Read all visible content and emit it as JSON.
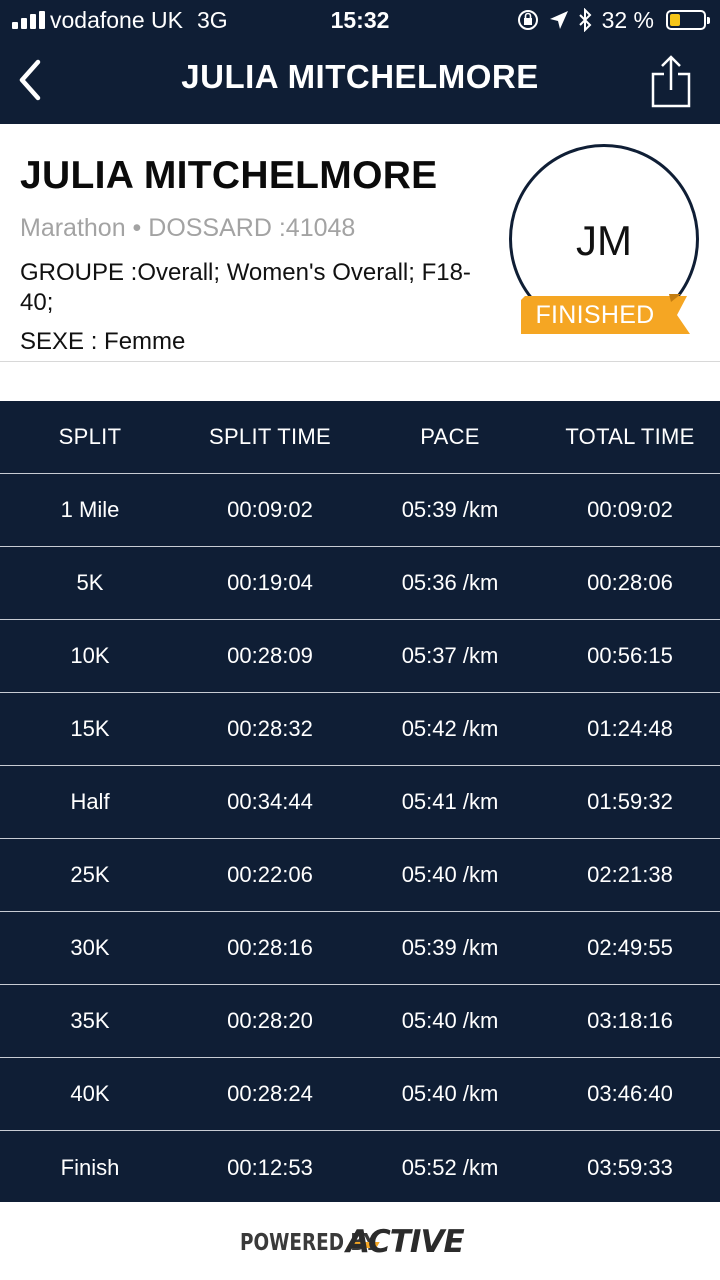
{
  "status_bar": {
    "carrier": "vodafone UK",
    "network": "3G",
    "time": "15:32",
    "battery_percent": "32 %",
    "battery_level": 0.32,
    "battery_color": "#f5c518"
  },
  "nav": {
    "back_icon": "chevron-left-icon",
    "title": "JULIA MITCHELMORE",
    "share_icon": "share-icon"
  },
  "profile": {
    "name": "JULIA MITCHELMORE",
    "race_line": "Marathon • DOSSARD :41048",
    "group_line": "GROUPE :Overall; Women's Overall; F18-40;",
    "sex_line": "SEXE : Femme",
    "initials": "JM",
    "status_badge": "FINISHED",
    "badge_color": "#f5a623"
  },
  "table": {
    "headers": [
      "SPLIT",
      "SPLIT TIME",
      "PACE",
      "TOTAL TIME"
    ],
    "rows": [
      [
        "1 Mile",
        "00:09:02",
        "05:39 /km",
        "00:09:02"
      ],
      [
        "5K",
        "00:19:04",
        "05:36 /km",
        "00:28:06"
      ],
      [
        "10K",
        "00:28:09",
        "05:37 /km",
        "00:56:15"
      ],
      [
        "15K",
        "00:28:32",
        "05:42 /km",
        "01:24:48"
      ],
      [
        "Half",
        "00:34:44",
        "05:41 /km",
        "01:59:32"
      ],
      [
        "25K",
        "00:22:06",
        "05:40 /km",
        "02:21:38"
      ],
      [
        "30K",
        "00:28:16",
        "05:39 /km",
        "02:49:55"
      ],
      [
        "35K",
        "00:28:20",
        "05:40 /km",
        "03:18:16"
      ],
      [
        "40K",
        "00:28:24",
        "05:40 /km",
        "03:46:40"
      ],
      [
        "Finish",
        "00:12:53",
        "05:52 /km",
        "03:59:33"
      ]
    ]
  },
  "footer": {
    "powered_by": "POWERED BY",
    "brand": "ACTIVE"
  },
  "colors": {
    "navy": "#0f1e35",
    "accent": "#f5a623"
  }
}
